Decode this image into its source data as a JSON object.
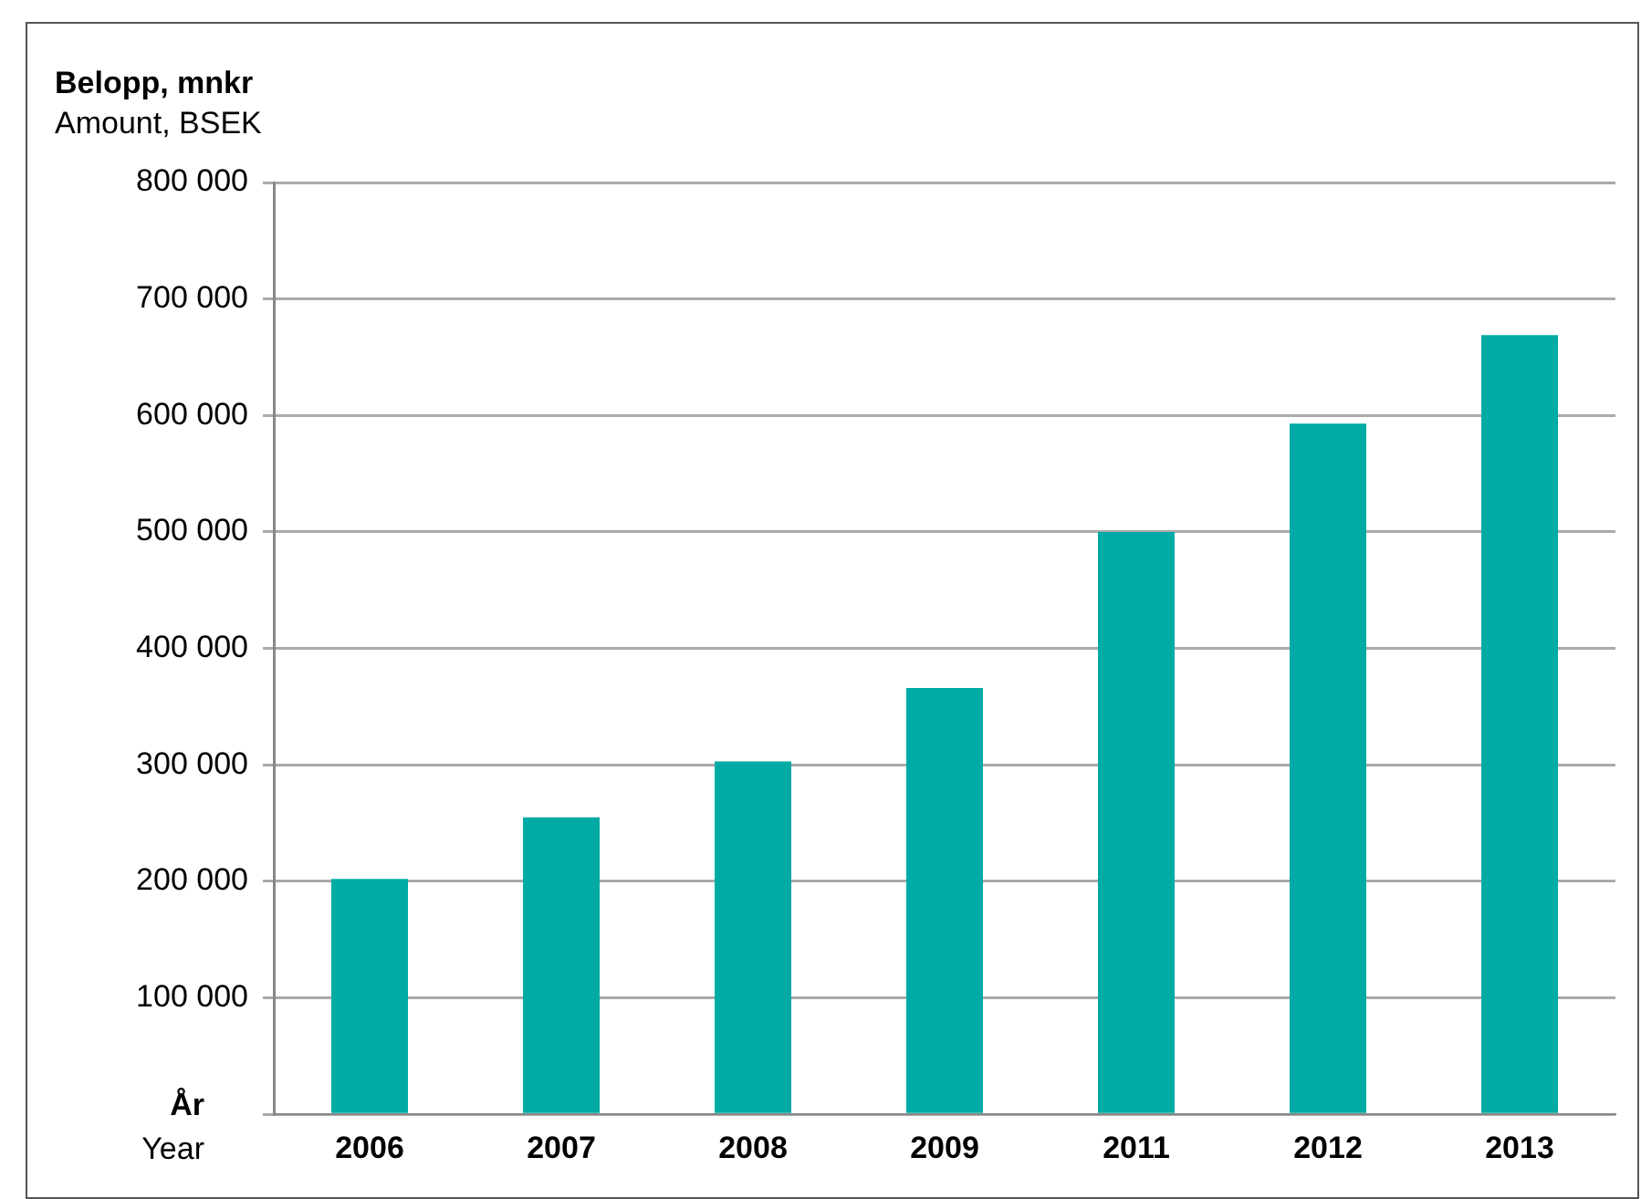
{
  "chart_data": {
    "type": "bar",
    "ylabel": "Belopp, mnkr\nAmount, BSEK",
    "xlabel": "År\nYear",
    "categories": [
      "2006",
      "2007",
      "2008",
      "2009",
      "2011",
      "2012",
      "2013"
    ],
    "values": [
      202000,
      255000,
      303000,
      366000,
      500000,
      593000,
      669000
    ],
    "color": "#00aba5",
    "ylim": [
      0,
      800000
    ],
    "yticks": [
      {
        "value": 0,
        "label": null
      },
      {
        "value": 100000,
        "label": "100 000"
      },
      {
        "value": 200000,
        "label": "200 000"
      },
      {
        "value": 300000,
        "label": "300 000"
      },
      {
        "value": 400000,
        "label": "400 000"
      },
      {
        "value": 500000,
        "label": "500 000"
      },
      {
        "value": 600000,
        "label": "600 000"
      },
      {
        "value": 700000,
        "label": "700 000"
      },
      {
        "value": 800000,
        "label": "800 000"
      }
    ],
    "grid": "y"
  }
}
